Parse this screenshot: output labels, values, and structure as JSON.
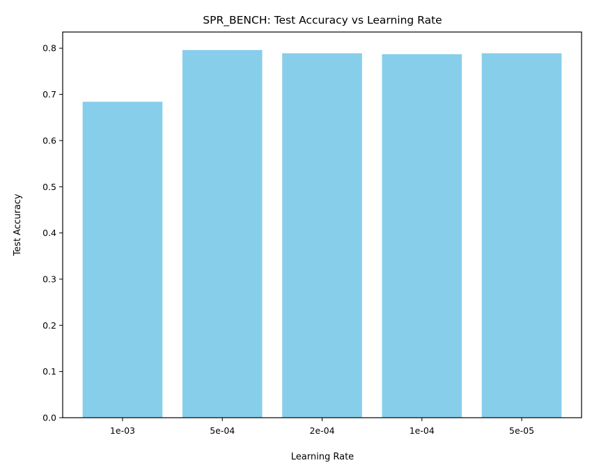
{
  "chart_data": {
    "type": "bar",
    "title": "SPR_BENCH: Test Accuracy vs Learning Rate",
    "xlabel": "Learning Rate",
    "ylabel": "Test Accuracy",
    "categories": [
      "1e-03",
      "5e-04",
      "2e-04",
      "1e-04",
      "5e-05"
    ],
    "values": [
      0.684,
      0.796,
      0.789,
      0.787,
      0.789
    ],
    "ylim": [
      0,
      0.835
    ],
    "yticks": [
      0.0,
      0.1,
      0.2,
      0.3,
      0.4,
      0.5,
      0.6,
      0.7,
      0.8
    ],
    "ytick_labels": [
      "0.0",
      "0.1",
      "0.2",
      "0.3",
      "0.4",
      "0.5",
      "0.6",
      "0.7",
      "0.8"
    ],
    "bar_color": "#87ceeb",
    "grid": false,
    "legend": "none"
  }
}
